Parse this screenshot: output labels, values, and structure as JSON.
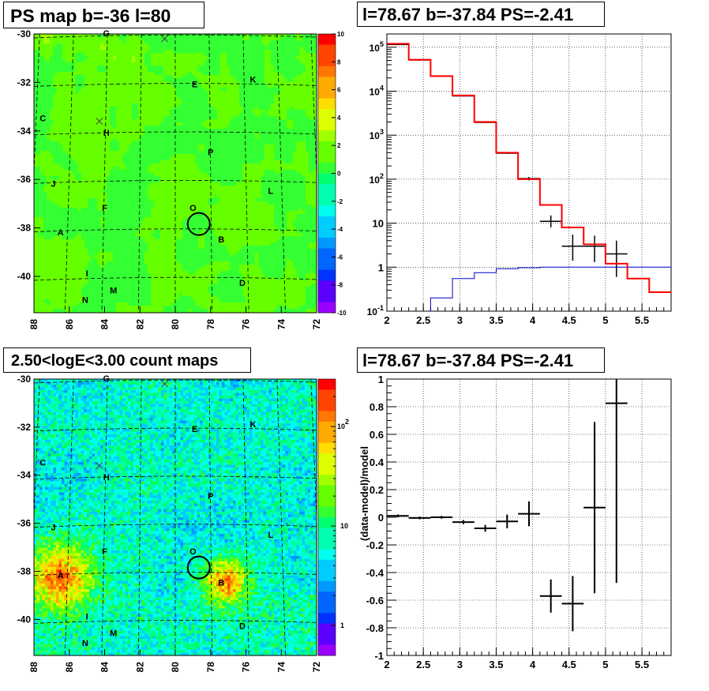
{
  "panels": {
    "tl_title": "PS map b=-36 l=80",
    "tr_title": "l=78.67 b=-37.84 PS=-2.41",
    "bl_title": "2.50<logE<3.00 count maps",
    "br_title": "l=78.67 b=-37.84 PS=-2.41"
  },
  "colors": {
    "spectrum_model": "#ff0000",
    "background_model": "#0000cc",
    "data": "#000000"
  },
  "maps": {
    "x_ticks": [
      "88",
      "86",
      "84",
      "82",
      "80",
      "78",
      "76",
      "74",
      "72"
    ],
    "y_ticks": [
      "-30",
      "-32",
      "-34",
      "-36",
      "-38",
      "-40"
    ],
    "ps_colorbar_ticks": [
      "10",
      "8",
      "6",
      "4",
      "2",
      "0",
      "-2",
      "-4",
      "-6",
      "-8",
      "-10"
    ],
    "count_colorbar_ticks": [
      "10^2",
      "10",
      "1"
    ],
    "source_labels": [
      "G",
      "E",
      "K",
      "C",
      "H",
      "P",
      "J",
      "L",
      "F",
      "O",
      "A",
      "B",
      "I",
      "D",
      "N",
      "M"
    ]
  },
  "chart_data": [
    {
      "type": "heatmap",
      "title": "PS map b=-36 l=80",
      "x_range": [
        88,
        72
      ],
      "y_range": [
        -41.5,
        -30
      ],
      "z_range": [
        -10,
        10
      ],
      "circle_center": [
        78.67,
        -37.84
      ]
    },
    {
      "type": "line",
      "title": "l=78.67 b=-37.84 PS=-2.41",
      "log_y": true,
      "xlim": [
        2,
        5.9
      ],
      "ylim": [
        0.1,
        200000
      ],
      "x_ticks": [
        "2",
        "2.5",
        "3",
        "3.5",
        "4",
        "4.5",
        "5",
        "5.5"
      ],
      "y_ticks": [
        "10^-1",
        "1",
        "10",
        "10^2",
        "10^3",
        "10^4",
        "10^5"
      ],
      "model_bins": [
        2.0,
        2.3,
        2.6,
        2.9,
        3.2,
        3.5,
        3.8,
        4.1,
        4.4,
        4.7,
        5.0,
        5.3,
        5.6,
        5.9
      ],
      "model_values": [
        120000,
        52000,
        22000,
        8000,
        2000,
        400,
        100,
        26,
        8,
        3.3,
        1.2,
        0.55,
        0.27
      ],
      "background_values": [
        0.03,
        0.06,
        0.2,
        0.55,
        0.75,
        0.92,
        0.97,
        1.0,
        1.0,
        1.0,
        1.0,
        1.0,
        1.0
      ],
      "data_points": [
        {
          "x": 2.15,
          "y": 115000,
          "xerr": 0.15,
          "ylo": 114000,
          "yhi": 116000
        },
        {
          "x": 2.45,
          "y": 51000,
          "xerr": 0.15,
          "ylo": 50500,
          "yhi": 51500
        },
        {
          "x": 2.75,
          "y": 22000,
          "xerr": 0.15,
          "ylo": 21700,
          "yhi": 22300
        },
        {
          "x": 3.05,
          "y": 7800,
          "xerr": 0.15,
          "ylo": 7650,
          "yhi": 7950
        },
        {
          "x": 3.35,
          "y": 1950,
          "xerr": 0.15,
          "ylo": 1900,
          "yhi": 2000
        },
        {
          "x": 3.65,
          "y": 390,
          "xerr": 0.15,
          "ylo": 375,
          "yhi": 405
        },
        {
          "x": 3.95,
          "y": 103,
          "xerr": 0.15,
          "ylo": 94,
          "yhi": 112
        },
        {
          "x": 4.25,
          "y": 11,
          "xerr": 0.15,
          "ylo": 8,
          "yhi": 15
        },
        {
          "x": 4.55,
          "y": 3,
          "xerr": 0.15,
          "ylo": 1.4,
          "yhi": 5.5
        },
        {
          "x": 4.85,
          "y": 3,
          "xerr": 0.15,
          "ylo": 1.3,
          "yhi": 5.2
        },
        {
          "x": 5.15,
          "y": 2,
          "xerr": 0.15,
          "ylo": 0.6,
          "yhi": 4.0
        }
      ]
    },
    {
      "type": "heatmap",
      "title": "2.50<logE<3.00 count maps",
      "x_range": [
        88,
        72
      ],
      "y_range": [
        -41.5,
        -30
      ],
      "log_z": true,
      "z_range": [
        0.5,
        300
      ],
      "circle_center": [
        78.67,
        -37.84
      ]
    },
    {
      "type": "scatter",
      "title": "l=78.67 b=-37.84 PS=-2.41",
      "ylabel": "(data-model)/model",
      "xlim": [
        2,
        5.9
      ],
      "ylim": [
        -1,
        1
      ],
      "x_ticks": [
        "2",
        "2.5",
        "3",
        "3.5",
        "4",
        "4.5",
        "5",
        "5.5"
      ],
      "y_ticks": [
        "-1",
        "-0.8",
        "-0.6",
        "-0.4",
        "-0.2",
        "0",
        "0.2",
        "0.4",
        "0.6",
        "0.8",
        "1"
      ],
      "points": [
        {
          "x": 2.15,
          "y": 0.01,
          "xerr": 0.15,
          "yerr": 0.01
        },
        {
          "x": 2.45,
          "y": -0.005,
          "xerr": 0.15,
          "yerr": 0.01
        },
        {
          "x": 2.75,
          "y": 0.0,
          "xerr": 0.15,
          "yerr": 0.01
        },
        {
          "x": 3.05,
          "y": -0.035,
          "xerr": 0.15,
          "yerr": 0.015
        },
        {
          "x": 3.35,
          "y": -0.08,
          "xerr": 0.15,
          "yerr": 0.025
        },
        {
          "x": 3.65,
          "y": -0.03,
          "xerr": 0.15,
          "yerr": 0.05
        },
        {
          "x": 3.95,
          "y": 0.025,
          "xerr": 0.15,
          "yerr": 0.09
        },
        {
          "x": 4.25,
          "y": -0.57,
          "xerr": 0.15,
          "yerr": 0.12
        },
        {
          "x": 4.55,
          "y": -0.625,
          "xerr": 0.15,
          "yerr": 0.2
        },
        {
          "x": 4.85,
          "y": 0.07,
          "xerr": 0.15,
          "yerr": 0.62
        },
        {
          "x": 5.15,
          "y": 0.825,
          "xerr": 0.15,
          "yerr": 1.3
        }
      ]
    }
  ]
}
